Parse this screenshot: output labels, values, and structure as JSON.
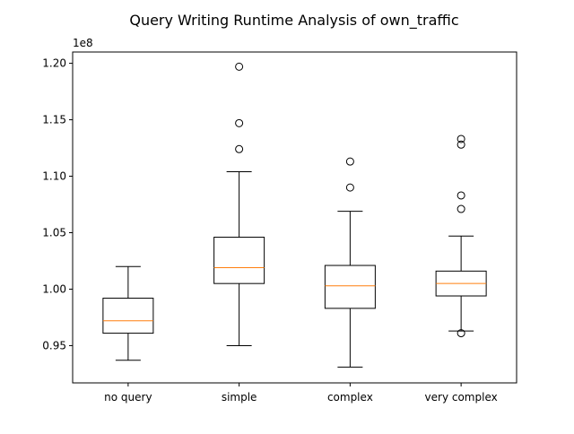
{
  "chart_data": {
    "type": "boxplot",
    "title": "Query Writing Runtime Analysis of own_traffic",
    "xlabel": "",
    "ylabel": "",
    "y_offset_label": "1e8",
    "y_scale": 100000000,
    "ylim": [
      0.917,
      1.21
    ],
    "yticks": [
      0.95,
      1.0,
      1.05,
      1.1,
      1.15,
      1.2
    ],
    "ytick_labels": [
      "0.95",
      "1.00",
      "1.05",
      "1.10",
      "1.15",
      "1.20"
    ],
    "grid": false,
    "categories": [
      "no query",
      "simple",
      "complex",
      "very complex"
    ],
    "boxes": [
      {
        "category": "no query",
        "whisker_low": 0.937,
        "q1": 0.961,
        "median": 0.972,
        "q3": 0.992,
        "whisker_high": 1.02,
        "outliers": []
      },
      {
        "category": "simple",
        "whisker_low": 0.95,
        "q1": 1.005,
        "median": 1.019,
        "q3": 1.046,
        "whisker_high": 1.104,
        "outliers": [
          1.124,
          1.147,
          1.197
        ]
      },
      {
        "category": "complex",
        "whisker_low": 0.931,
        "q1": 0.983,
        "median": 1.003,
        "q3": 1.021,
        "whisker_high": 1.069,
        "outliers": [
          1.09,
          1.113
        ]
      },
      {
        "category": "very complex",
        "whisker_low": 0.963,
        "q1": 0.994,
        "median": 1.005,
        "q3": 1.016,
        "whisker_high": 1.047,
        "outliers": [
          0.961,
          1.071,
          1.083,
          1.128,
          1.133
        ]
      }
    ],
    "colors": {
      "box": "#000000",
      "median": "#ff7f0e",
      "outlier_edge": "#000000"
    }
  }
}
